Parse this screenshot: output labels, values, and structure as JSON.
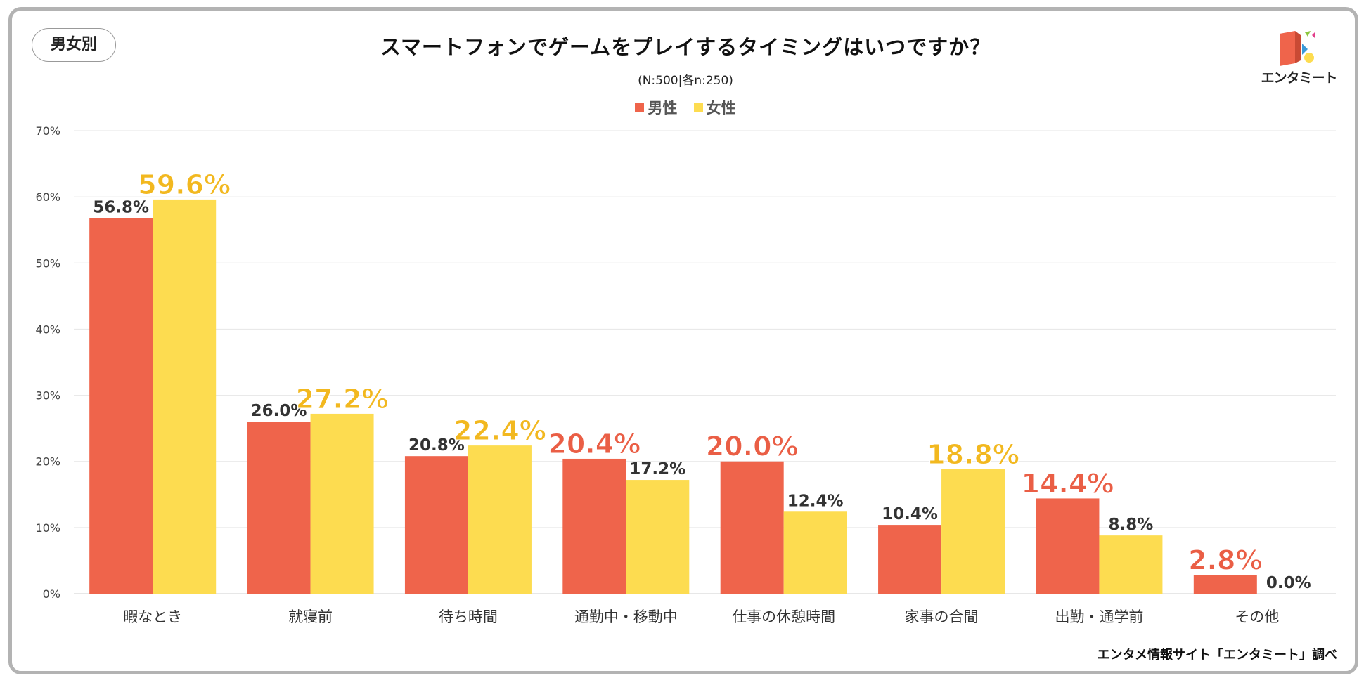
{
  "header": {
    "tag_label": "男女別",
    "title": "スマートフォンでゲームをプレイするタイミングはいつですか？",
    "subtitle": "(N:500|各n:250)"
  },
  "logo": {
    "text": "エンタミート",
    "icon": "entameet-logo-icon"
  },
  "source": "エンタメ情報サイト「エンタミート」調べ",
  "colors": {
    "male": "#ef644b",
    "female": "#fddc50",
    "highlight_male": "#ea5e45",
    "highlight_female": "#f2b81f",
    "grid": "#e6e6e6",
    "frame": "#b3b3b3"
  },
  "chart_data": {
    "type": "bar",
    "title": "スマートフォンでゲームをプレイするタイミングはいつですか？",
    "subtitle": "(N:500|各n:250)",
    "xlabel": "",
    "ylabel": "",
    "ylim": [
      0,
      70
    ],
    "yticks": [
      "0%",
      "10%",
      "20%",
      "30%",
      "40%",
      "50%",
      "60%",
      "70%"
    ],
    "grid": true,
    "legend_position": "top-center",
    "categories": [
      "暇なとき",
      "就寝前",
      "待ち時間",
      "通勤中・移動中",
      "仕事の休憩時間",
      "家事の合間",
      "出勤・通学前",
      "その他"
    ],
    "series": [
      {
        "name": "男性",
        "values": [
          56.8,
          26.0,
          20.8,
          20.4,
          20.0,
          10.4,
          14.4,
          2.8
        ],
        "labels": [
          "56.8%",
          "26.0%",
          "20.8%",
          "20.4%",
          "20.0%",
          "10.4%",
          "14.4%",
          "2.8%"
        ]
      },
      {
        "name": "女性",
        "values": [
          59.6,
          27.2,
          22.4,
          17.2,
          12.4,
          18.8,
          8.8,
          0.0
        ],
        "labels": [
          "59.6%",
          "27.2%",
          "22.4%",
          "17.2%",
          "12.4%",
          "18.8%",
          "8.8%",
          "0.0%"
        ]
      }
    ]
  }
}
